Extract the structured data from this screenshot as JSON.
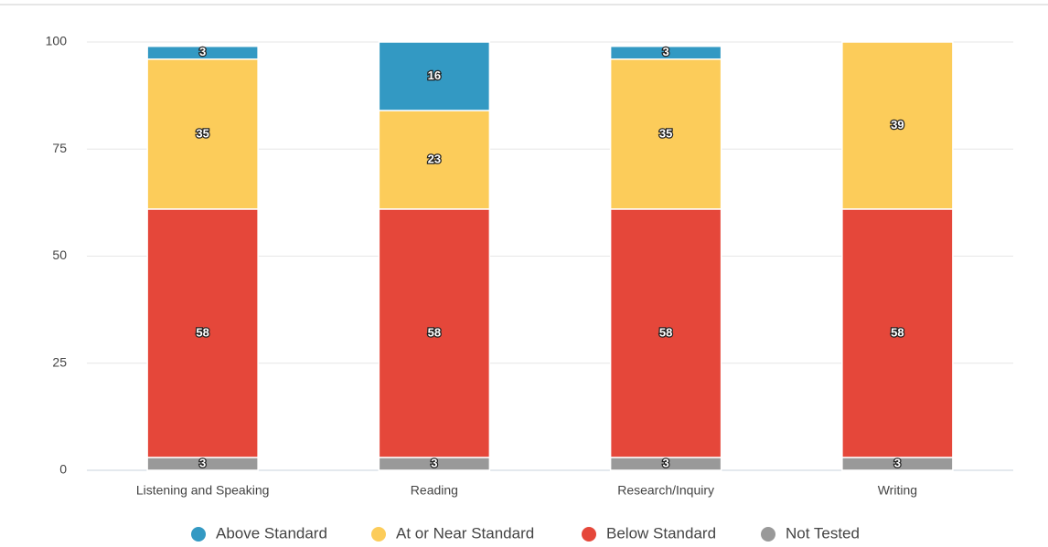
{
  "chart_data": {
    "type": "stacked_bar",
    "categories": [
      "Listening and Speaking",
      "Reading",
      "Research/Inquiry",
      "Writing"
    ],
    "series": [
      {
        "name": "Above Standard",
        "color": "#3399c3",
        "values": [
          3,
          16,
          3,
          null
        ]
      },
      {
        "name": "At or Near Standard",
        "color": "#fccc5a",
        "values": [
          35,
          23,
          35,
          39
        ]
      },
      {
        "name": "Below Standard",
        "color": "#e5473a",
        "values": [
          58,
          58,
          58,
          58
        ]
      },
      {
        "name": "Not Tested",
        "color": "#999999",
        "values": [
          3,
          3,
          3,
          3
        ]
      }
    ],
    "ylim": [
      0,
      100
    ],
    "yticks": [
      0,
      25,
      50,
      75,
      100
    ],
    "grid": true,
    "legend": "bottom"
  }
}
